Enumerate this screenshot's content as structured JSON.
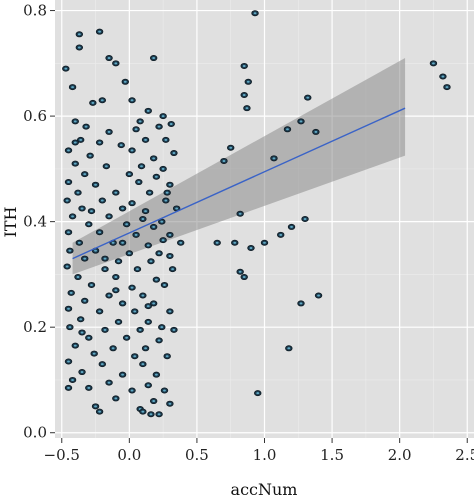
{
  "chart_data": {
    "type": "scatter",
    "xlabel": "accNum",
    "ylabel": "ITH",
    "xlim": [
      -0.55,
      2.55
    ],
    "ylim": [
      -0.01,
      0.82
    ],
    "xticks": [
      -0.5,
      0.0,
      0.5,
      1.0,
      1.5,
      2.0,
      2.5
    ],
    "xtick_labels": [
      "−0.5",
      "0.0",
      "0.5",
      "1.0",
      "1.5",
      "2.0",
      "2.5"
    ],
    "yticks": [
      0.0,
      0.2,
      0.4,
      0.6,
      0.8
    ],
    "ytick_labels": [
      "0.0",
      "0.2",
      "0.4",
      "0.6",
      "0.8"
    ],
    "grid": true,
    "regression": {
      "x": [
        -0.42,
        2.04
      ],
      "y": [
        0.33,
        0.615
      ],
      "ci_lower": [
        0.3,
        0.525
      ],
      "ci_upper": [
        0.36,
        0.71
      ]
    },
    "points": [
      [
        -0.47,
        0.69
      ],
      [
        -0.37,
        0.73
      ],
      [
        -0.37,
        0.755
      ],
      [
        -0.22,
        0.76
      ],
      [
        -0.15,
        0.71
      ],
      [
        -0.1,
        0.7
      ],
      [
        -0.03,
        0.665
      ],
      [
        0.18,
        0.71
      ],
      [
        -0.42,
        0.655
      ],
      [
        -0.2,
        0.63
      ],
      [
        -0.27,
        0.625
      ],
      [
        0.02,
        0.63
      ],
      [
        0.14,
        0.61
      ],
      [
        0.25,
        0.6
      ],
      [
        -0.4,
        0.59
      ],
      [
        -0.32,
        0.58
      ],
      [
        -0.15,
        0.57
      ],
      [
        0.05,
        0.575
      ],
      [
        0.22,
        0.58
      ],
      [
        0.31,
        0.585
      ],
      [
        -0.36,
        0.555
      ],
      [
        -0.22,
        0.55
      ],
      [
        -0.06,
        0.545
      ],
      [
        0.12,
        0.555
      ],
      [
        0.27,
        0.555
      ],
      [
        -0.45,
        0.535
      ],
      [
        -0.29,
        0.525
      ],
      [
        0.02,
        0.535
      ],
      [
        0.18,
        0.52
      ],
      [
        0.33,
        0.53
      ],
      [
        -0.4,
        0.51
      ],
      [
        -0.17,
        0.505
      ],
      [
        0.09,
        0.505
      ],
      [
        0.25,
        0.5
      ],
      [
        -0.33,
        0.49
      ],
      [
        0.0,
        0.49
      ],
      [
        0.2,
        0.485
      ],
      [
        -0.45,
        0.475
      ],
      [
        -0.25,
        0.47
      ],
      [
        0.07,
        0.475
      ],
      [
        0.3,
        0.47
      ],
      [
        -0.38,
        0.455
      ],
      [
        -0.1,
        0.455
      ],
      [
        0.15,
        0.455
      ],
      [
        -0.46,
        0.44
      ],
      [
        -0.2,
        0.44
      ],
      [
        0.02,
        0.435
      ],
      [
        0.27,
        0.44
      ],
      [
        -0.35,
        0.425
      ],
      [
        -0.05,
        0.425
      ],
      [
        0.12,
        0.42
      ],
      [
        0.35,
        0.425
      ],
      [
        -0.42,
        0.41
      ],
      [
        -0.15,
        0.41
      ],
      [
        0.1,
        0.405
      ],
      [
        0.24,
        0.4
      ],
      [
        -0.3,
        0.395
      ],
      [
        -0.02,
        0.395
      ],
      [
        0.18,
        0.39
      ],
      [
        -0.45,
        0.38
      ],
      [
        -0.22,
        0.38
      ],
      [
        0.05,
        0.375
      ],
      [
        0.3,
        0.375
      ],
      [
        -0.37,
        0.36
      ],
      [
        -0.12,
        0.36
      ],
      [
        0.14,
        0.355
      ],
      [
        0.38,
        0.36
      ],
      [
        -0.44,
        0.345
      ],
      [
        -0.25,
        0.345
      ],
      [
        0.0,
        0.34
      ],
      [
        0.22,
        0.34
      ],
      [
        -0.33,
        0.33
      ],
      [
        -0.08,
        0.325
      ],
      [
        0.16,
        0.325
      ],
      [
        -0.46,
        0.315
      ],
      [
        -0.18,
        0.31
      ],
      [
        0.06,
        0.31
      ],
      [
        0.32,
        0.31
      ],
      [
        -0.38,
        0.295
      ],
      [
        -0.1,
        0.295
      ],
      [
        0.2,
        0.29
      ],
      [
        -0.28,
        0.28
      ],
      [
        0.02,
        0.275
      ],
      [
        0.26,
        0.28
      ],
      [
        -0.43,
        0.265
      ],
      [
        -0.15,
        0.26
      ],
      [
        0.1,
        0.26
      ],
      [
        -0.33,
        0.25
      ],
      [
        -0.05,
        0.245
      ],
      [
        0.18,
        0.245
      ],
      [
        -0.45,
        0.235
      ],
      [
        -0.22,
        0.23
      ],
      [
        0.04,
        0.23
      ],
      [
        0.3,
        0.23
      ],
      [
        -0.36,
        0.215
      ],
      [
        -0.08,
        0.21
      ],
      [
        0.14,
        0.21
      ],
      [
        -0.44,
        0.2
      ],
      [
        -0.18,
        0.195
      ],
      [
        0.08,
        0.195
      ],
      [
        0.33,
        0.195
      ],
      [
        -0.3,
        0.18
      ],
      [
        -0.02,
        0.18
      ],
      [
        0.22,
        0.175
      ],
      [
        -0.4,
        0.165
      ],
      [
        -0.12,
        0.16
      ],
      [
        0.12,
        0.16
      ],
      [
        -0.26,
        0.15
      ],
      [
        0.04,
        0.145
      ],
      [
        0.28,
        0.145
      ],
      [
        -0.45,
        0.135
      ],
      [
        -0.2,
        0.13
      ],
      [
        0.1,
        0.13
      ],
      [
        -0.35,
        0.115
      ],
      [
        -0.05,
        0.11
      ],
      [
        0.2,
        0.11
      ],
      [
        -0.42,
        0.1
      ],
      [
        -0.15,
        0.095
      ],
      [
        0.14,
        0.09
      ],
      [
        -0.3,
        0.085
      ],
      [
        0.02,
        0.08
      ],
      [
        0.26,
        0.08
      ],
      [
        -0.45,
        0.085
      ],
      [
        -0.1,
        0.065
      ],
      [
        0.18,
        0.06
      ],
      [
        0.3,
        0.055
      ],
      [
        -0.25,
        0.05
      ],
      [
        0.08,
        0.045
      ],
      [
        -0.22,
        0.04
      ],
      [
        0.1,
        0.04
      ],
      [
        0.16,
        0.035
      ],
      [
        0.22,
        0.035
      ],
      [
        -0.05,
        0.36
      ],
      [
        0.25,
        0.365
      ],
      [
        -0.28,
        0.42
      ],
      [
        0.28,
        0.455
      ],
      [
        -0.4,
        0.55
      ],
      [
        0.08,
        0.59
      ],
      [
        -0.18,
        0.33
      ],
      [
        0.3,
        0.335
      ],
      [
        -0.1,
        0.27
      ],
      [
        0.14,
        0.24
      ],
      [
        -0.35,
        0.19
      ],
      [
        0.24,
        0.2
      ],
      [
        0.93,
        0.795
      ],
      [
        0.85,
        0.695
      ],
      [
        0.88,
        0.665
      ],
      [
        0.85,
        0.64
      ],
      [
        0.87,
        0.615
      ],
      [
        0.75,
        0.54
      ],
      [
        0.7,
        0.515
      ],
      [
        1.07,
        0.52
      ],
      [
        1.17,
        0.575
      ],
      [
        1.27,
        0.59
      ],
      [
        1.32,
        0.635
      ],
      [
        1.38,
        0.57
      ],
      [
        1.3,
        0.405
      ],
      [
        1.2,
        0.39
      ],
      [
        1.12,
        0.375
      ],
      [
        1.0,
        0.36
      ],
      [
        0.82,
        0.415
      ],
      [
        0.9,
        0.35
      ],
      [
        0.78,
        0.36
      ],
      [
        0.65,
        0.36
      ],
      [
        0.82,
        0.305
      ],
      [
        0.85,
        0.295
      ],
      [
        1.4,
        0.26
      ],
      [
        1.27,
        0.245
      ],
      [
        1.18,
        0.16
      ],
      [
        0.95,
        0.075
      ],
      [
        2.25,
        0.7
      ],
      [
        2.32,
        0.675
      ],
      [
        2.35,
        0.655
      ]
    ]
  }
}
